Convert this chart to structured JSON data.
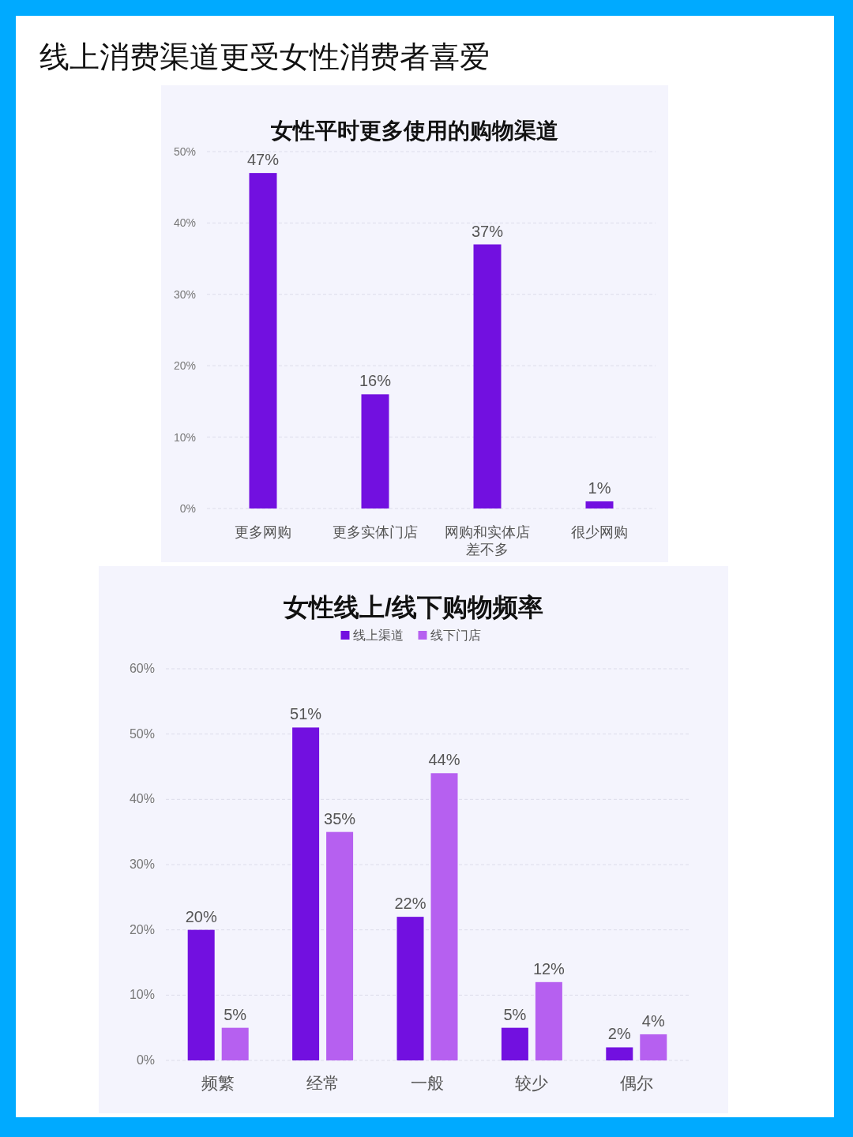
{
  "chart_data": [
    {
      "type": "bar",
      "title": "线上消费渠道更受女性消费者喜爱",
      "subtitle": "女性平时更多使用的购物渠道",
      "categories": [
        "更多网购",
        "更多实体门店",
        "网购和实体店差不多",
        "很少网购"
      ],
      "values": [
        47,
        16,
        37,
        1
      ],
      "value_labels": [
        "47%",
        "16%",
        "37%",
        "1%"
      ],
      "color": "#7210e0",
      "ylim": [
        0,
        50
      ],
      "yticks": [
        {
          "value": 0,
          "label": "0%"
        },
        {
          "value": 10,
          "label": "10%"
        },
        {
          "value": 20,
          "label": "20%"
        },
        {
          "value": 30,
          "label": "30%"
        },
        {
          "value": 40,
          "label": "40%"
        },
        {
          "value": 50,
          "label": "50%"
        }
      ],
      "grid": "y"
    },
    {
      "type": "bar",
      "title": "女性线上/线下购物频率",
      "categories": [
        "频繁",
        "经常",
        "一般",
        "较少",
        "偶尔"
      ],
      "series": [
        {
          "name": "线上渠道",
          "color": "#7210e0",
          "values": [
            20,
            51,
            22,
            5,
            2
          ],
          "value_labels": [
            "20%",
            "51%",
            "22%",
            "5%",
            "2%"
          ]
        },
        {
          "name": "线下门店",
          "color": "#b660f0",
          "values": [
            5,
            35,
            44,
            12,
            4
          ],
          "value_labels": [
            "5%",
            "35%",
            "44%",
            "12%",
            "4%"
          ]
        }
      ],
      "ylim": [
        0,
        60
      ],
      "yticks": [
        {
          "value": 0,
          "label": "0%"
        },
        {
          "value": 10,
          "label": "10%"
        },
        {
          "value": 20,
          "label": "20%"
        },
        {
          "value": 30,
          "label": "30%"
        },
        {
          "value": 40,
          "label": "40%"
        },
        {
          "value": 50,
          "label": "50%"
        },
        {
          "value": 60,
          "label": "60%"
        }
      ],
      "grid": "y",
      "legend": "top"
    }
  ]
}
